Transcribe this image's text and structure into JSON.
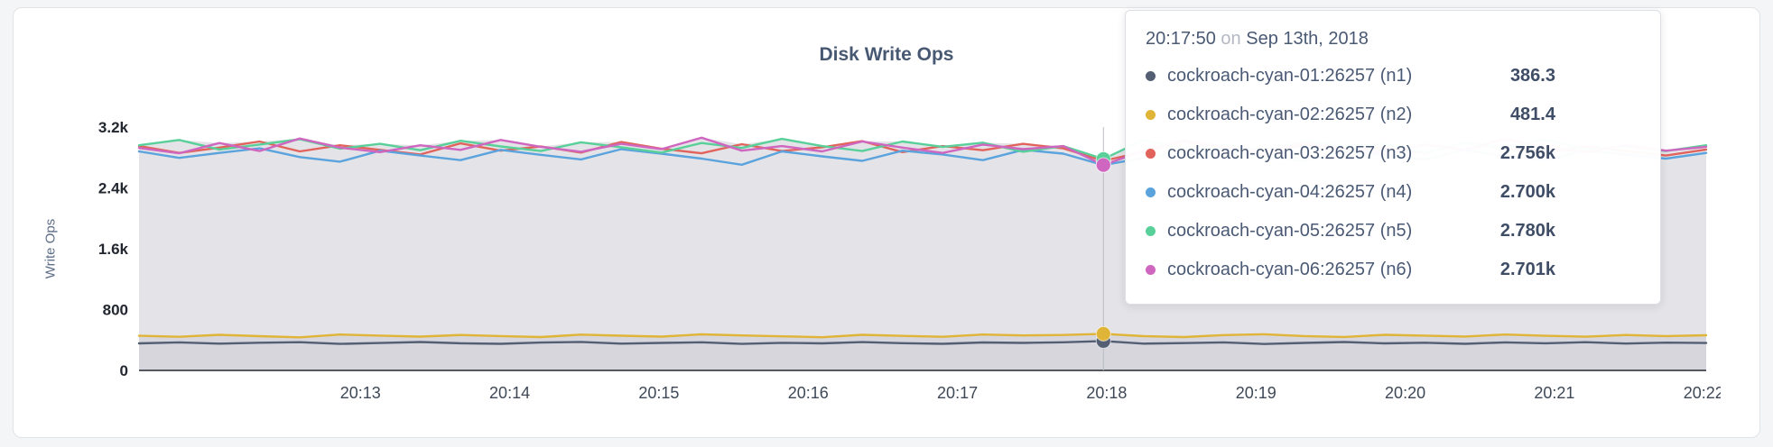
{
  "page": {
    "background": "#f4f5f6"
  },
  "chart": {
    "title": "Disk Write Ops",
    "ylabel": "Write Ops"
  },
  "tooltip": {
    "time": "20:17:50",
    "separator": "on",
    "date": "Sep 13th, 2018",
    "rows": [
      {
        "label": "cockroach-cyan-01:26257 (n1)",
        "value": "386.3",
        "color": "#545f74"
      },
      {
        "label": "cockroach-cyan-02:26257 (n2)",
        "value": "481.4",
        "color": "#e0b437"
      },
      {
        "label": "cockroach-cyan-03:26257 (n3)",
        "value": "2.756k",
        "color": "#e2635c"
      },
      {
        "label": "cockroach-cyan-04:26257 (n4)",
        "value": "2.700k",
        "color": "#5ba3dd"
      },
      {
        "label": "cockroach-cyan-05:26257 (n5)",
        "value": "2.780k",
        "color": "#59d099"
      },
      {
        "label": "cockroach-cyan-06:26257 (n6)",
        "value": "2.701k",
        "color": "#cf66c0"
      }
    ]
  },
  "chart_data": {
    "type": "line",
    "title": "Disk Write Ops",
    "xlabel": "",
    "ylabel": "Write Ops",
    "ylim": [
      0,
      3200
    ],
    "ytick_values": [
      0,
      800,
      1600,
      2400,
      3200
    ],
    "ytick_labels": [
      "0",
      "800",
      "1.6k",
      "2.4k",
      "3.2k"
    ],
    "xtick_labels": [
      "20:13",
      "20:14",
      "20:15",
      "20:16",
      "20:17",
      "20:18",
      "20:19",
      "20:20",
      "20:21",
      "20:22"
    ],
    "x_window_seconds": 630,
    "first_tick_offset_seconds": 89,
    "tick_interval_seconds": 60,
    "grid": false,
    "legend_position": "tooltip",
    "area_fill": "#e4e4e8",
    "lower_area_overlay": "rgba(95,100,115,0.10)",
    "hover": {
      "time": "20:17:50",
      "date": "Sep 13th, 2018",
      "index": 24,
      "values": [
        386.3,
        481.4,
        2756,
        2700,
        2780,
        2701
      ]
    },
    "series": [
      {
        "name": "cockroach-cyan-01:26257 (n1)",
        "color": "#545f74",
        "values": [
          355,
          368,
          352,
          364,
          371,
          349,
          360,
          373,
          357,
          350,
          366,
          374,
          352,
          361,
          370,
          348,
          363,
          355,
          372,
          358,
          350,
          367,
          361,
          370,
          386,
          352,
          359,
          368,
          347,
          362,
          373,
          355,
          364,
          350,
          368,
          357,
          371,
          353,
          365,
          360
        ]
      },
      {
        "name": "cockroach-cyan-02:26257 (n2)",
        "color": "#e0b437",
        "values": [
          455,
          442,
          468,
          450,
          435,
          472,
          458,
          444,
          466,
          452,
          438,
          470,
          456,
          445,
          474,
          460,
          448,
          436,
          468,
          454,
          442,
          472,
          460,
          466,
          481,
          450,
          438,
          464,
          475,
          452,
          440,
          468,
          458,
          446,
          472,
          455,
          443,
          466,
          452,
          462
        ]
      },
      {
        "name": "cockroach-cyan-03:26257 (n3)",
        "color": "#e2635c",
        "values": [
          2950,
          2860,
          2930,
          3010,
          2880,
          2960,
          2900,
          2840,
          2985,
          2890,
          2945,
          2865,
          3005,
          2915,
          2855,
          2975,
          2885,
          2935,
          3015,
          2870,
          2950,
          2895,
          2980,
          2920,
          2756,
          2875,
          3010,
          2905,
          2845,
          2965,
          2895,
          2935,
          2860,
          2990,
          2915,
          2865,
          2945,
          2885,
          2825,
          2905
        ]
      },
      {
        "name": "cockroach-cyan-04:26257 (n4)",
        "color": "#5ba3dd",
        "values": [
          2880,
          2795,
          2860,
          2920,
          2805,
          2745,
          2890,
          2825,
          2765,
          2900,
          2835,
          2775,
          2910,
          2850,
          2785,
          2705,
          2880,
          2815,
          2755,
          2890,
          2840,
          2765,
          2900,
          2850,
          2700,
          2795,
          2870,
          2915,
          2805,
          2755,
          2880,
          2830,
          2775,
          2900,
          2815,
          2765,
          2885,
          2840,
          2785,
          2860
        ]
      },
      {
        "name": "cockroach-cyan-05:26257 (n5)",
        "color": "#59d099",
        "values": [
          2960,
          3030,
          2905,
          2970,
          3040,
          2915,
          2980,
          2895,
          3020,
          2945,
          2885,
          3000,
          2935,
          2865,
          2990,
          2925,
          3045,
          2950,
          2885,
          3010,
          2940,
          2995,
          2875,
          2950,
          2780,
          3030,
          2905,
          2960,
          2890,
          3020,
          2945,
          2980,
          2865,
          2990,
          2925,
          3040,
          2900,
          2950,
          2885,
          2960
        ]
      },
      {
        "name": "cockroach-cyan-06:26257 (n6)",
        "color": "#cf66c0",
        "values": [
          2925,
          2855,
          2990,
          2885,
          3050,
          2930,
          2870,
          2960,
          2900,
          3030,
          2940,
          2875,
          2980,
          2910,
          3060,
          2890,
          2950,
          2880,
          3010,
          2930,
          2860,
          2970,
          2910,
          2950,
          2701,
          2890,
          3020,
          2940,
          2880,
          2990,
          2920,
          2855,
          2970,
          2900,
          3045,
          2930,
          2870,
          2960,
          2890,
          2940
        ]
      }
    ]
  }
}
